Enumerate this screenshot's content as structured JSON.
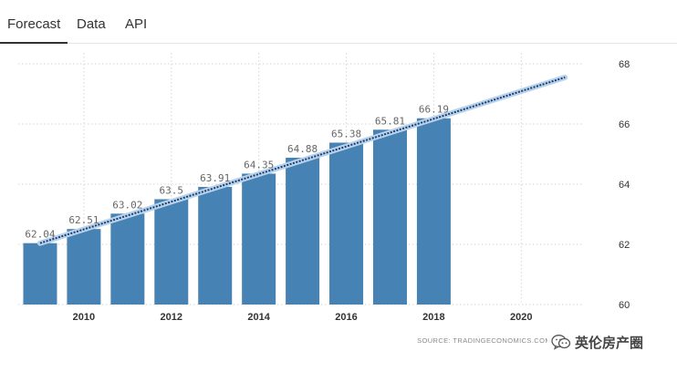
{
  "tabs": [
    {
      "label": "Forecast",
      "active": true
    },
    {
      "label": "Data",
      "active": false
    },
    {
      "label": "API",
      "active": false
    }
  ],
  "source_text": "SOURCE: TRADINGECONOMICS.COM",
  "watermark_text": "英伦房产圈",
  "colors": {
    "bar": "#4682b4",
    "trend_band": "#b7d3ec",
    "trend_line": "#1f3b70"
  },
  "chart_data": {
    "type": "bar",
    "x": [
      2009,
      2010,
      2011,
      2012,
      2013,
      2014,
      2015,
      2016,
      2017,
      2018
    ],
    "values": [
      62.04,
      62.51,
      63.02,
      63.5,
      63.91,
      64.35,
      64.88,
      65.38,
      65.81,
      66.19
    ],
    "value_labels": [
      "62.04",
      "62.51",
      "63.02",
      "63.5",
      "63.91",
      "64.35",
      "64.88",
      "65.38",
      "65.81",
      "66.19"
    ],
    "x_ticks": [
      2010,
      2012,
      2014,
      2016,
      2018,
      2020
    ],
    "y_ticks": [
      60,
      62,
      64,
      66,
      68
    ],
    "ylim": [
      60,
      68
    ],
    "xlim": [
      2008.5,
      2021.6
    ],
    "trend": {
      "x": [
        2009,
        2021
      ],
      "y": [
        62.04,
        67.55
      ]
    },
    "grid": true,
    "y_axis_side": "right",
    "title": "",
    "xlabel": "",
    "ylabel": ""
  }
}
